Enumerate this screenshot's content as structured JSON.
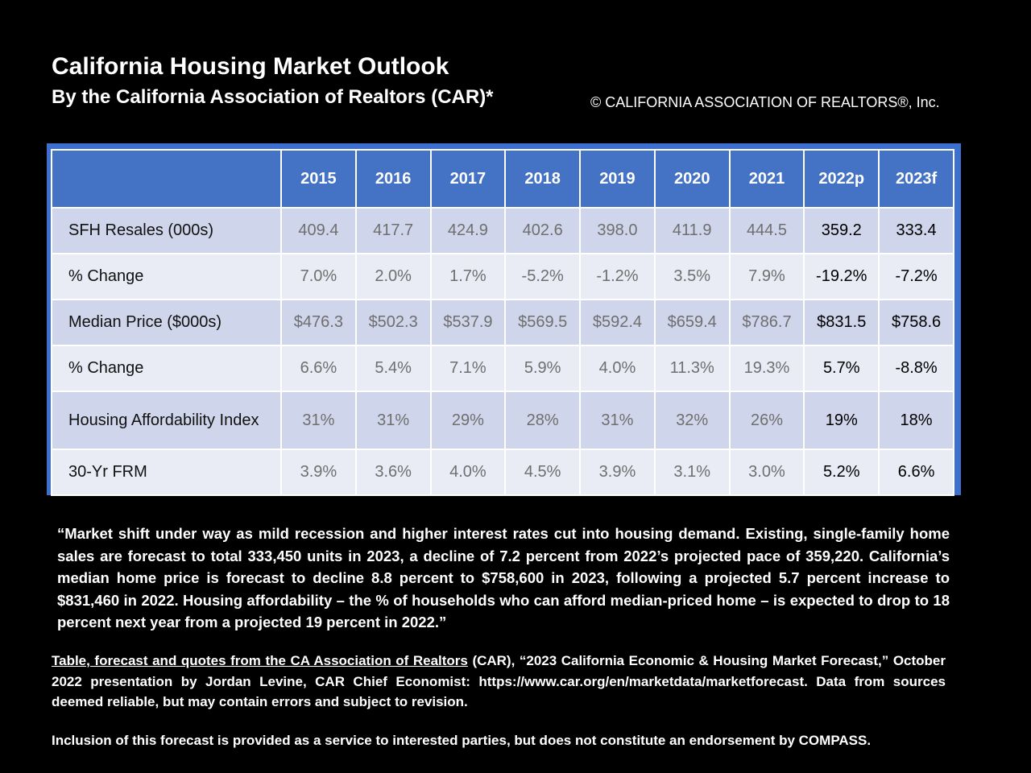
{
  "header": {
    "title": "California Housing Market Outlook",
    "subtitle": "By the California Association of Realtors (CAR)*",
    "copyright": "© CALIFORNIA ASSOCIATION OF REALTORS®, Inc."
  },
  "chart_data": {
    "type": "table",
    "columns": [
      "2015",
      "2016",
      "2017",
      "2018",
      "2019",
      "2020",
      "2021",
      "2022p",
      "2023f"
    ],
    "rows": [
      {
        "label": "SFH Resales (000s)",
        "values": [
          "409.4",
          "417.7",
          "424.9",
          "402.6",
          "398.0",
          "411.9",
          "444.5",
          "359.2",
          "333.4"
        ]
      },
      {
        "label": "% Change",
        "values": [
          "7.0%",
          "2.0%",
          "1.7%",
          "-5.2%",
          "-1.2%",
          "3.5%",
          "7.9%",
          "-19.2%",
          "-7.2%"
        ]
      },
      {
        "label": "Median Price ($000s)",
        "values": [
          "$476.3",
          "$502.3",
          "$537.9",
          "$569.5",
          "$592.4",
          "$659.4",
          "$786.7",
          "$831.5",
          "$758.6"
        ]
      },
      {
        "label": "% Change",
        "values": [
          "6.6%",
          "5.4%",
          "7.1%",
          "5.9%",
          "4.0%",
          "11.3%",
          "19.3%",
          "5.7%",
          "-8.8%"
        ]
      },
      {
        "label": "Housing Affordability Index",
        "values": [
          "31%",
          "31%",
          "29%",
          "28%",
          "31%",
          "32%",
          "26%",
          "19%",
          "18%"
        ]
      },
      {
        "label": "30-Yr FRM",
        "values": [
          "3.9%",
          "3.6%",
          "4.0%",
          "4.5%",
          "3.9%",
          "3.1%",
          "3.0%",
          "5.2%",
          "6.6%"
        ]
      }
    ]
  },
  "quote": "“Market shift under way as mild recession and higher interest rates cut into housing demand. Existing, single-family home sales are forecast to total 333,450 units in 2023, a decline of 7.2 percent from 2022’s projected pace of 359,220. California’s median home price is forecast to decline 8.8 percent to $758,600 in 2023, following a projected 5.7 percent increase to $831,460 in 2022. Housing affordability – the % of households who can afford median-priced home – is expected to drop to 18 percent next year from a projected 19 percent in 2022.”",
  "source": {
    "underlined": "Table, forecast and quotes from the CA Association of Realtors",
    "rest": " (CAR), “2023 California Economic & Housing Market Forecast,” October 2022 presentation by Jordan Levine, CAR Chief Economist: https://www.car.org/en/marketdata/marketforecast. Data from sources deemed reliable, but may contain errors and subject to revision."
  },
  "disclaimer": "Inclusion of this forecast is provided as a service to interested parties, but does not constitute an endorsement by COMPASS."
}
